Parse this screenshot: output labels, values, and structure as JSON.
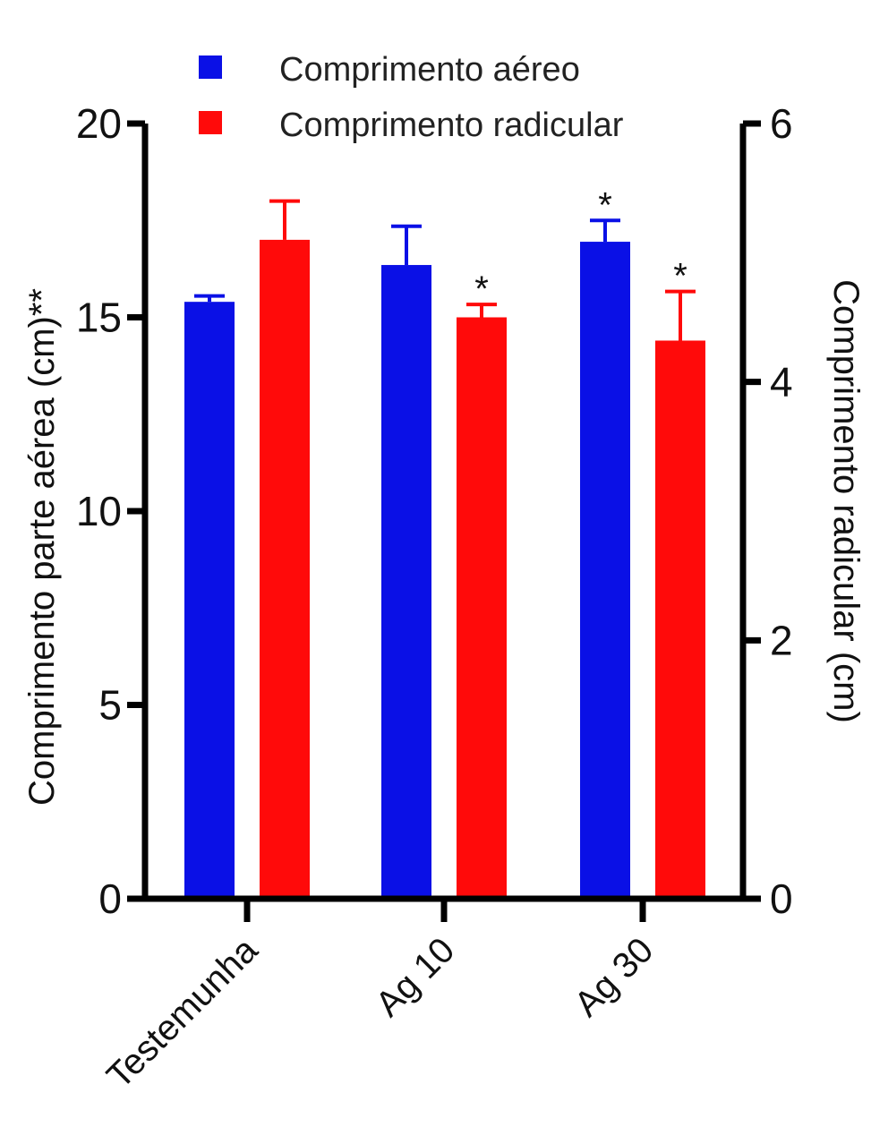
{
  "chart_data": {
    "type": "bar",
    "categories": [
      "Testemunha",
      "Ag 10",
      "Ag 30"
    ],
    "series": [
      {
        "name": "Comprimento aéreo",
        "axis": "left",
        "color": "#0a10e6",
        "values": [
          15.4,
          16.35,
          16.95
        ],
        "errors": [
          0.15,
          1.0,
          0.55
        ],
        "markers": [
          "",
          "",
          "*"
        ]
      },
      {
        "name": "Comprimento radicular",
        "axis": "right",
        "color": "#ff0a0a",
        "values": [
          5.1,
          4.5,
          4.32
        ],
        "errors": [
          0.3,
          0.1,
          0.38
        ],
        "markers": [
          "",
          "*",
          "*"
        ]
      }
    ],
    "ylabel": "Comprimento parte aérea (cm)**",
    "ylim": [
      0,
      20
    ],
    "yticks": [
      0,
      5,
      10,
      15,
      20
    ],
    "y2label": "Comprimento radicular (cm)",
    "y2lim": [
      0,
      6
    ],
    "y2ticks": [
      0,
      2,
      4,
      6
    ],
    "legend_position": "top",
    "grid": false
  }
}
